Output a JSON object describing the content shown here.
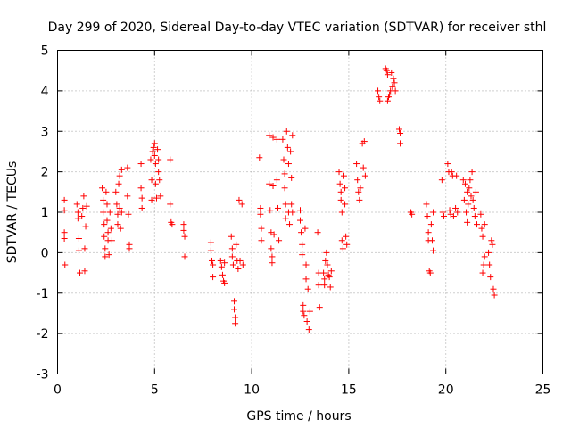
{
  "chart_data": {
    "type": "scatter",
    "title": "Day 299 of 2020, Sidereal Day-to-day VTEC variation (SDTVAR) for receiver sthl",
    "xlabel": "GPS time / hours",
    "ylabel": "SDTVAR / TECUs",
    "xlim": [
      0,
      25
    ],
    "ylim": [
      -3,
      5
    ],
    "xticks": [
      "0",
      "5",
      "10",
      "15",
      "20",
      "25"
    ],
    "yticks": [
      "-3",
      "-2",
      "-1",
      "0",
      "1",
      "2",
      "3",
      "4",
      "5"
    ],
    "grid": true,
    "marker": "plus",
    "color": "#ff0000",
    "series": [
      {
        "name": "SDTVAR",
        "points": [
          [
            0.35,
            1.3
          ],
          [
            0.35,
            1.05
          ],
          [
            0.35,
            0.5
          ],
          [
            0.35,
            0.35
          ],
          [
            0.38,
            -0.3
          ],
          [
            1.0,
            1.2
          ],
          [
            1.05,
            1.0
          ],
          [
            1.05,
            0.85
          ],
          [
            1.1,
            0.35
          ],
          [
            1.1,
            0.05
          ],
          [
            1.15,
            -0.5
          ],
          [
            1.25,
            0.9
          ],
          [
            1.3,
            1.1
          ],
          [
            1.35,
            1.4
          ],
          [
            1.4,
            0.1
          ],
          [
            1.4,
            -0.45
          ],
          [
            1.45,
            0.65
          ],
          [
            1.5,
            1.15
          ],
          [
            2.3,
            1.6
          ],
          [
            2.35,
            1.3
          ],
          [
            2.35,
            1.0
          ],
          [
            2.4,
            0.7
          ],
          [
            2.4,
            0.4
          ],
          [
            2.45,
            0.1
          ],
          [
            2.45,
            -0.1
          ],
          [
            2.5,
            1.5
          ],
          [
            2.55,
            1.2
          ],
          [
            2.55,
            0.8
          ],
          [
            2.6,
            0.5
          ],
          [
            2.6,
            0.3
          ],
          [
            2.65,
            -0.05
          ],
          [
            2.7,
            1.0
          ],
          [
            2.75,
            0.6
          ],
          [
            2.8,
            0.3
          ],
          [
            3.0,
            1.5
          ],
          [
            3.05,
            1.2
          ],
          [
            3.1,
            0.95
          ],
          [
            3.1,
            0.7
          ],
          [
            3.15,
            1.7
          ],
          [
            3.2,
            1.9
          ],
          [
            3.2,
            1.1
          ],
          [
            3.25,
            0.6
          ],
          [
            3.3,
            2.05
          ],
          [
            3.3,
            1.0
          ],
          [
            3.6,
            2.1
          ],
          [
            3.6,
            1.4
          ],
          [
            3.65,
            0.95
          ],
          [
            3.7,
            0.2
          ],
          [
            3.7,
            0.1
          ],
          [
            4.3,
            2.2
          ],
          [
            4.3,
            1.6
          ],
          [
            4.35,
            1.35
          ],
          [
            4.35,
            1.1
          ],
          [
            4.8,
            2.3
          ],
          [
            4.85,
            1.8
          ],
          [
            4.85,
            1.3
          ],
          [
            4.9,
            2.5
          ],
          [
            4.95,
            2.6
          ],
          [
            5.0,
            2.7
          ],
          [
            5.0,
            2.4
          ],
          [
            5.05,
            2.2
          ],
          [
            5.05,
            1.7
          ],
          [
            5.1,
            1.35
          ],
          [
            5.15,
            2.55
          ],
          [
            5.2,
            2.3
          ],
          [
            5.2,
            2.0
          ],
          [
            5.25,
            1.8
          ],
          [
            5.3,
            1.4
          ],
          [
            5.8,
            2.3
          ],
          [
            5.8,
            1.2
          ],
          [
            5.85,
            0.75
          ],
          [
            5.9,
            0.7
          ],
          [
            6.5,
            0.7
          ],
          [
            6.5,
            0.55
          ],
          [
            6.55,
            0.4
          ],
          [
            6.55,
            -0.1
          ],
          [
            7.9,
            0.25
          ],
          [
            7.9,
            0.05
          ],
          [
            7.95,
            -0.2
          ],
          [
            8.0,
            -0.3
          ],
          [
            8.0,
            -0.6
          ],
          [
            8.4,
            -0.2
          ],
          [
            8.45,
            -0.35
          ],
          [
            8.5,
            -0.55
          ],
          [
            8.55,
            -0.7
          ],
          [
            8.6,
            -0.75
          ],
          [
            8.6,
            -0.25
          ],
          [
            8.95,
            0.4
          ],
          [
            9.0,
            0.1
          ],
          [
            9.0,
            -0.1
          ],
          [
            9.05,
            -0.3
          ],
          [
            9.1,
            -1.2
          ],
          [
            9.1,
            -1.4
          ],
          [
            9.15,
            -1.6
          ],
          [
            9.15,
            -1.75
          ],
          [
            9.2,
            0.2
          ],
          [
            9.25,
            -0.2
          ],
          [
            9.3,
            -0.4
          ],
          [
            9.35,
            1.3
          ],
          [
            9.4,
            -0.2
          ],
          [
            9.5,
            1.2
          ],
          [
            9.55,
            -0.3
          ],
          [
            10.4,
            2.35
          ],
          [
            10.45,
            1.1
          ],
          [
            10.45,
            0.95
          ],
          [
            10.5,
            0.6
          ],
          [
            10.5,
            0.3
          ],
          [
            10.9,
            2.9
          ],
          [
            10.9,
            1.7
          ],
          [
            10.95,
            1.05
          ],
          [
            11.0,
            0.5
          ],
          [
            11.0,
            0.1
          ],
          [
            11.05,
            -0.1
          ],
          [
            11.05,
            -0.25
          ],
          [
            11.1,
            2.85
          ],
          [
            11.1,
            1.65
          ],
          [
            11.15,
            0.45
          ],
          [
            11.3,
            2.8
          ],
          [
            11.3,
            1.8
          ],
          [
            11.35,
            1.1
          ],
          [
            11.4,
            0.3
          ],
          [
            11.6,
            2.8
          ],
          [
            11.65,
            2.3
          ],
          [
            11.7,
            1.95
          ],
          [
            11.7,
            1.6
          ],
          [
            11.75,
            1.2
          ],
          [
            11.75,
            0.85
          ],
          [
            11.8,
            3.0
          ],
          [
            11.85,
            2.6
          ],
          [
            11.9,
            2.2
          ],
          [
            11.9,
            1.0
          ],
          [
            11.95,
            0.7
          ],
          [
            12.0,
            2.5
          ],
          [
            12.05,
            1.85
          ],
          [
            12.05,
            1.2
          ],
          [
            12.1,
            2.9
          ],
          [
            12.1,
            1.0
          ],
          [
            12.5,
            1.05
          ],
          [
            12.5,
            0.8
          ],
          [
            12.55,
            0.5
          ],
          [
            12.6,
            0.2
          ],
          [
            12.6,
            -0.05
          ],
          [
            12.65,
            -1.3
          ],
          [
            12.65,
            -1.45
          ],
          [
            12.7,
            -1.55
          ],
          [
            12.75,
            0.6
          ],
          [
            12.8,
            -0.3
          ],
          [
            12.8,
            -0.65
          ],
          [
            12.85,
            -1.7
          ],
          [
            12.9,
            -0.9
          ],
          [
            12.95,
            -1.9
          ],
          [
            13.0,
            -1.45
          ],
          [
            13.4,
            0.5
          ],
          [
            13.45,
            -0.5
          ],
          [
            13.45,
            -0.8
          ],
          [
            13.5,
            -1.35
          ],
          [
            13.7,
            -0.5
          ],
          [
            13.75,
            -0.65
          ],
          [
            13.75,
            -0.8
          ],
          [
            13.8,
            -0.2
          ],
          [
            13.85,
            0.0
          ],
          [
            13.9,
            -0.3
          ],
          [
            13.95,
            -0.55
          ],
          [
            14.0,
            -0.6
          ],
          [
            14.05,
            -0.85
          ],
          [
            14.1,
            -0.45
          ],
          [
            14.5,
            2.0
          ],
          [
            14.55,
            1.7
          ],
          [
            14.6,
            1.5
          ],
          [
            14.6,
            1.3
          ],
          [
            14.65,
            1.0
          ],
          [
            14.65,
            0.3
          ],
          [
            14.7,
            0.1
          ],
          [
            14.75,
            1.9
          ],
          [
            14.8,
            1.6
          ],
          [
            14.8,
            1.2
          ],
          [
            14.85,
            0.4
          ],
          [
            14.9,
            0.2
          ],
          [
            15.4,
            2.2
          ],
          [
            15.45,
            1.8
          ],
          [
            15.5,
            1.5
          ],
          [
            15.55,
            1.3
          ],
          [
            15.6,
            1.6
          ],
          [
            15.7,
            2.7
          ],
          [
            15.75,
            2.1
          ],
          [
            15.8,
            2.75
          ],
          [
            15.85,
            1.9
          ],
          [
            16.5,
            4.0
          ],
          [
            16.55,
            3.85
          ],
          [
            16.6,
            3.75
          ],
          [
            16.9,
            4.55
          ],
          [
            16.95,
            4.5
          ],
          [
            17.0,
            4.4
          ],
          [
            17.0,
            3.75
          ],
          [
            17.05,
            3.85
          ],
          [
            17.1,
            3.9
          ],
          [
            17.15,
            4.0
          ],
          [
            17.2,
            4.45
          ],
          [
            17.25,
            4.1
          ],
          [
            17.3,
            4.3
          ],
          [
            17.35,
            4.2
          ],
          [
            17.4,
            4.0
          ],
          [
            17.6,
            3.05
          ],
          [
            17.65,
            2.95
          ],
          [
            17.65,
            2.7
          ],
          [
            18.2,
            1.0
          ],
          [
            18.25,
            0.95
          ],
          [
            19.0,
            1.2
          ],
          [
            19.05,
            0.9
          ],
          [
            19.1,
            0.5
          ],
          [
            19.1,
            0.3
          ],
          [
            19.15,
            -0.45
          ],
          [
            19.2,
            -0.5
          ],
          [
            19.25,
            0.7
          ],
          [
            19.3,
            0.3
          ],
          [
            19.35,
            1.0
          ],
          [
            19.35,
            0.05
          ],
          [
            19.8,
            1.8
          ],
          [
            19.85,
            1.0
          ],
          [
            19.9,
            0.9
          ],
          [
            20.1,
            2.2
          ],
          [
            20.15,
            2.0
          ],
          [
            20.2,
            1.05
          ],
          [
            20.25,
            0.95
          ],
          [
            20.3,
            2.0
          ],
          [
            20.35,
            1.9
          ],
          [
            20.4,
            0.9
          ],
          [
            20.5,
            1.1
          ],
          [
            20.55,
            1.9
          ],
          [
            20.6,
            1.0
          ],
          [
            20.9,
            1.8
          ],
          [
            20.95,
            1.3
          ],
          [
            21.0,
            1.7
          ],
          [
            21.05,
            1.0
          ],
          [
            21.1,
            0.75
          ],
          [
            21.1,
            1.5
          ],
          [
            21.15,
            1.2
          ],
          [
            21.2,
            1.6
          ],
          [
            21.25,
            1.8
          ],
          [
            21.3,
            1.4
          ],
          [
            21.35,
            2.0
          ],
          [
            21.4,
            1.3
          ],
          [
            21.45,
            1.1
          ],
          [
            21.5,
            0.9
          ],
          [
            21.55,
            1.5
          ],
          [
            21.6,
            0.7
          ],
          [
            21.8,
            0.95
          ],
          [
            21.85,
            0.6
          ],
          [
            21.9,
            0.4
          ],
          [
            21.9,
            -0.5
          ],
          [
            21.95,
            -0.3
          ],
          [
            22.0,
            0.7
          ],
          [
            22.0,
            -0.1
          ],
          [
            22.2,
            0.0
          ],
          [
            22.25,
            -0.3
          ],
          [
            22.3,
            -0.6
          ],
          [
            22.35,
            0.3
          ],
          [
            22.4,
            0.2
          ],
          [
            22.45,
            -0.9
          ],
          [
            22.5,
            -1.05
          ]
        ]
      }
    ]
  }
}
